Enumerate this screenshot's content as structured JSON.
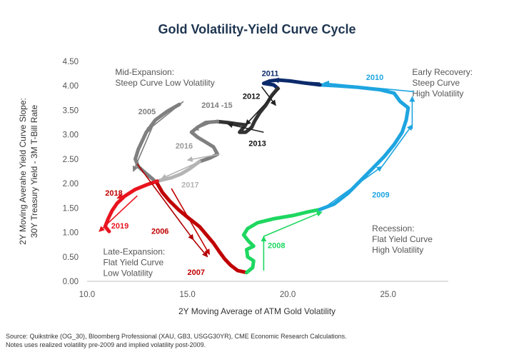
{
  "chart_data": {
    "type": "line",
    "title": "Gold Volatility-Yield Curve Cycle",
    "xlabel": "2Y Moving Average of ATM Gold Volatility",
    "ylabel_lines": [
      "2Y Moving Averahe Yield Curve Slope:",
      "30Y Treasury Yield - 3M T-Bill Rate"
    ],
    "xlim": [
      10,
      28
    ],
    "ylim": [
      0,
      4.5
    ],
    "x_ticks": [
      10,
      15,
      20,
      25
    ],
    "x_tick_labels": [
      "10.0",
      "15.0",
      "20.0",
      "25.0"
    ],
    "y_ticks": [
      0,
      0.5,
      1,
      1.5,
      2,
      2.5,
      3,
      3.5,
      4,
      4.5
    ],
    "y_tick_labels": [
      "0.00",
      "0.50",
      "1.00",
      "1.50",
      "2.00",
      "2.50",
      "3.00",
      "3.50",
      "4.00",
      "4.50"
    ],
    "regions": [
      {
        "name": "mid-expansion",
        "lines": [
          "Mid-Expansion:",
          "Steep Curve  Low Volatility"
        ],
        "at": [
          11.4,
          4.22
        ],
        "anchor": "start"
      },
      {
        "name": "early-recovery",
        "lines": [
          "Early Recovery:",
          "Steep Curve",
          "High Volatility"
        ],
        "at": [
          26.2,
          4.22
        ],
        "anchor": "start"
      },
      {
        "name": "recession",
        "lines": [
          "Recession:",
          "Flat Yield Curve",
          "High Volatility"
        ],
        "at": [
          24.2,
          1.02
        ],
        "anchor": "start"
      },
      {
        "name": "late-expansion",
        "lines": [
          "Late-Expansion:",
          "Flat Yield Curve",
          "Low Volatility"
        ],
        "at": [
          10.8,
          0.55
        ],
        "anchor": "start"
      }
    ],
    "series": [
      {
        "name": "2005",
        "color": "#7f7f7f",
        "width": 5,
        "points": [
          [
            14.6,
            3.62
          ],
          [
            14.0,
            3.48
          ],
          [
            13.4,
            3.3
          ],
          [
            12.95,
            3.05
          ],
          [
            12.55,
            2.7
          ],
          [
            12.4,
            2.5
          ],
          [
            12.55,
            2.35
          ],
          [
            12.9,
            2.22
          ],
          [
            13.25,
            2.1
          ],
          [
            13.5,
            2.0
          ]
        ]
      },
      {
        "name": "2006-2007",
        "color": "#c00000",
        "width": 5,
        "points": [
          [
            13.5,
            2.0
          ],
          [
            13.75,
            1.82
          ],
          [
            14.1,
            1.65
          ],
          [
            14.6,
            1.45
          ],
          [
            15.1,
            1.28
          ],
          [
            15.6,
            1.12
          ],
          [
            15.95,
            0.95
          ],
          [
            16.3,
            0.78
          ],
          [
            16.6,
            0.6
          ],
          [
            16.85,
            0.46
          ],
          [
            17.15,
            0.33
          ],
          [
            17.5,
            0.22
          ],
          [
            17.95,
            0.18
          ]
        ]
      },
      {
        "name": "2008",
        "color": "#1ed760",
        "width": 5,
        "points": [
          [
            17.95,
            0.18
          ],
          [
            18.25,
            0.28
          ],
          [
            18.3,
            0.42
          ],
          [
            18.0,
            0.5
          ],
          [
            17.95,
            0.65
          ],
          [
            18.3,
            0.72
          ],
          [
            18.05,
            0.82
          ],
          [
            17.8,
            0.95
          ],
          [
            18.0,
            1.08
          ],
          [
            18.5,
            1.2
          ],
          [
            19.3,
            1.28
          ],
          [
            20.3,
            1.35
          ],
          [
            21.0,
            1.42
          ],
          [
            21.6,
            1.47
          ]
        ]
      },
      {
        "name": "2009-2010",
        "color": "#1ea5e0",
        "width": 5,
        "points": [
          [
            21.6,
            1.47
          ],
          [
            22.3,
            1.58
          ],
          [
            23.0,
            1.8
          ],
          [
            23.6,
            2.05
          ],
          [
            24.2,
            2.3
          ],
          [
            24.8,
            2.55
          ],
          [
            25.3,
            2.8
          ],
          [
            25.7,
            3.05
          ],
          [
            25.9,
            3.3
          ],
          [
            26.0,
            3.55
          ],
          [
            25.6,
            3.68
          ],
          [
            25.3,
            3.85
          ],
          [
            24.6,
            3.92
          ],
          [
            23.5,
            3.97
          ],
          [
            22.5,
            4.0
          ],
          [
            21.6,
            4.02
          ]
        ]
      },
      {
        "name": "2011",
        "color": "#0c2b6b",
        "width": 5,
        "points": [
          [
            21.6,
            4.02
          ],
          [
            20.8,
            4.06
          ],
          [
            20.1,
            4.1
          ],
          [
            19.5,
            4.12
          ],
          [
            19.1,
            4.1
          ],
          [
            18.8,
            4.05
          ],
          [
            19.3,
            4.02
          ],
          [
            19.5,
            3.95
          ]
        ]
      },
      {
        "name": "2012-2013",
        "color": "#333333",
        "width": 5,
        "points": [
          [
            19.5,
            3.95
          ],
          [
            19.2,
            3.8
          ],
          [
            18.9,
            3.6
          ],
          [
            18.6,
            3.45
          ],
          [
            18.35,
            3.28
          ],
          [
            18.2,
            3.15
          ],
          [
            17.9,
            3.05
          ],
          [
            17.6,
            3.05
          ],
          [
            17.9,
            3.2
          ],
          [
            17.5,
            3.22
          ],
          [
            17.0,
            3.25
          ],
          [
            16.5,
            3.27
          ]
        ]
      },
      {
        "name": "2014-2015",
        "color": "#7f7f7f",
        "width": 5,
        "points": [
          [
            16.5,
            3.27
          ],
          [
            15.9,
            3.25
          ],
          [
            15.5,
            3.15
          ],
          [
            15.2,
            3.05
          ],
          [
            15.5,
            2.95
          ],
          [
            15.9,
            2.85
          ],
          [
            16.3,
            2.75
          ],
          [
            16.5,
            2.6
          ],
          [
            16.1,
            2.52
          ],
          [
            15.6,
            2.45
          ]
        ]
      },
      {
        "name": "2016-2017",
        "color": "#b4b4b4",
        "width": 5,
        "points": [
          [
            15.6,
            2.45
          ],
          [
            15.1,
            2.3
          ],
          [
            14.7,
            2.2
          ],
          [
            14.2,
            2.12
          ],
          [
            13.8,
            2.08
          ],
          [
            13.5,
            2.05
          ]
        ]
      },
      {
        "name": "2018-2019",
        "color": "#e8141e",
        "width": 5,
        "points": [
          [
            13.5,
            2.05
          ],
          [
            13.0,
            1.98
          ],
          [
            12.4,
            1.88
          ],
          [
            11.9,
            1.75
          ],
          [
            11.5,
            1.6
          ],
          [
            11.25,
            1.45
          ],
          [
            11.05,
            1.28
          ],
          [
            10.9,
            1.12
          ],
          [
            11.1,
            1.02
          ]
        ]
      }
    ],
    "arrows": [
      {
        "name": "2005",
        "color": "#7f7f7f",
        "from": [
          14.8,
          3.68
        ],
        "to": [
          12.9,
          3.05
        ]
      },
      {
        "name": "2005b",
        "color": "#7f7f7f",
        "from": [
          13.4,
          3.3
        ],
        "to": [
          12.3,
          2.25
        ]
      },
      {
        "name": "2006",
        "color": "#b00000",
        "from": [
          12.5,
          2.4
        ],
        "to": [
          15.3,
          0.85
        ]
      },
      {
        "name": "2006b",
        "color": "#b00000",
        "from": [
          15.3,
          0.85
        ],
        "to": [
          16.0,
          0.5
        ]
      },
      {
        "name": "2007",
        "color": "#c00000",
        "from": [
          14.2,
          1.9
        ],
        "to": [
          16.1,
          0.55
        ]
      },
      {
        "name": "2008",
        "color": "#1ed760",
        "from": [
          18.8,
          0.22
        ],
        "to": [
          18.8,
          0.92
        ]
      },
      {
        "name": "2008b",
        "color": "#1ed760",
        "from": [
          18.8,
          0.92
        ],
        "to": [
          21.7,
          1.42
        ]
      },
      {
        "name": "2009",
        "color": "#1ea5e0",
        "from": [
          21.8,
          1.5
        ],
        "to": [
          24.7,
          2.35
        ]
      },
      {
        "name": "2009b",
        "color": "#1ea5e0",
        "from": [
          24.7,
          2.35
        ],
        "to": [
          26.2,
          3.2
        ]
      },
      {
        "name": "2010",
        "color": "#1ea5e0",
        "from": [
          26.2,
          3.12
        ],
        "to": [
          26.2,
          3.78
        ]
      },
      {
        "name": "2010b",
        "color": "#1ea5e0",
        "from": [
          26.3,
          3.88
        ],
        "to": [
          21.8,
          4.06
        ]
      },
      {
        "name": "2011",
        "color": "#0c2b6b",
        "from": [
          21.6,
          4.06
        ],
        "to": [
          19.3,
          4.12
        ]
      },
      {
        "name": "2012",
        "color": "#222222",
        "from": [
          18.7,
          3.98
        ],
        "to": [
          19.4,
          3.6
        ]
      },
      {
        "name": "2012b",
        "color": "#222222",
        "from": [
          19.6,
          3.95
        ],
        "to": [
          17.9,
          3.2
        ]
      },
      {
        "name": "2013",
        "color": "#222222",
        "from": [
          18.8,
          3.05
        ],
        "to": [
          17.0,
          3.22
        ]
      },
      {
        "name": "2014",
        "color": "#7f7f7f",
        "from": [
          16.5,
          3.3
        ],
        "to": [
          15.3,
          3.1
        ]
      },
      {
        "name": "2016",
        "color": "#b4b4b4",
        "from": [
          16.6,
          2.6
        ],
        "to": [
          15.0,
          2.48
        ]
      },
      {
        "name": "2017",
        "color": "#b4b4b4",
        "from": [
          15.6,
          2.45
        ],
        "to": [
          13.7,
          2.1
        ]
      },
      {
        "name": "2018",
        "color": "#e8141e",
        "from": [
          13.5,
          2.05
        ],
        "to": [
          11.5,
          1.7
        ]
      },
      {
        "name": "2018b",
        "color": "#e8141e",
        "from": [
          12.5,
          1.75
        ],
        "to": [
          10.6,
          1.02
        ]
      }
    ],
    "year_labels": [
      {
        "text": "2005",
        "color": "#7f7f7f",
        "at": [
          12.55,
          3.42
        ]
      },
      {
        "text": "2006",
        "color": "#c00000",
        "at": [
          13.2,
          0.97
        ]
      },
      {
        "text": "2007",
        "color": "#c00000",
        "at": [
          15.0,
          0.13
        ]
      },
      {
        "text": "2008",
        "color": "#1ed760",
        "at": [
          19.0,
          0.68
        ]
      },
      {
        "text": "2009",
        "color": "#1ea5e0",
        "at": [
          24.2,
          1.72
        ]
      },
      {
        "text": "2010",
        "color": "#1ea5e0",
        "at": [
          23.9,
          4.12
        ]
      },
      {
        "text": "2011",
        "color": "#0c2b6b",
        "at": [
          18.7,
          4.2
        ]
      },
      {
        "text": "2012",
        "color": "#111111",
        "at": [
          17.75,
          3.73
        ]
      },
      {
        "text": "2013",
        "color": "#111111",
        "at": [
          18.05,
          2.77
        ]
      },
      {
        "text": "2014 -15",
        "color": "#7f7f7f",
        "at": [
          15.7,
          3.55
        ]
      },
      {
        "text": "2016",
        "color": "#9a9a9a",
        "at": [
          14.4,
          2.72
        ]
      },
      {
        "text": "2017",
        "color": "#b4b4b4",
        "at": [
          14.7,
          1.92
        ]
      },
      {
        "text": "2018",
        "color": "#c00000",
        "at": [
          10.9,
          1.75
        ]
      },
      {
        "text": "2019",
        "color": "#e8141e",
        "at": [
          11.2,
          1.08
        ]
      }
    ],
    "grid": false
  },
  "footnote_lines": [
    "Source: Quikstrike (OG_30), Bloomberg Professional (XAU, GB3, USGG30YR), CME Economic Research Calculations.",
    "Notes uses realized volatility pre-2009 and implied volatility post-2009."
  ]
}
